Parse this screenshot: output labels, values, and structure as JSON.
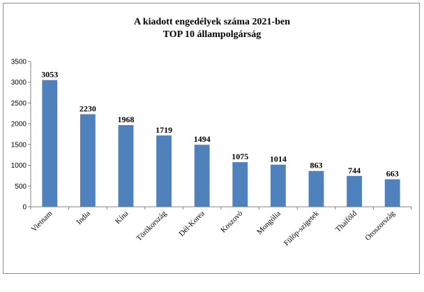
{
  "chart_data": {
    "type": "bar",
    "title": "A kiadott engedélyek száma 2021-ben",
    "subtitle": "TOP 10 állampolgárság",
    "categories": [
      "Vietnam",
      "India",
      "Kína",
      "Törökország",
      "Dél-Korea",
      "Koszovó",
      "Mongólia",
      "Fülöp-szigetek",
      "Thaiföld",
      "Oroszország"
    ],
    "values": [
      3053,
      2230,
      1968,
      1719,
      1494,
      1075,
      1014,
      863,
      744,
      663
    ],
    "ylim": [
      0,
      3500
    ],
    "yticks": [
      0,
      500,
      1000,
      1500,
      2000,
      2500,
      3000,
      3500
    ],
    "grid": false,
    "legend": "none",
    "bar_color": "#4f81bd",
    "data_labels": true
  }
}
